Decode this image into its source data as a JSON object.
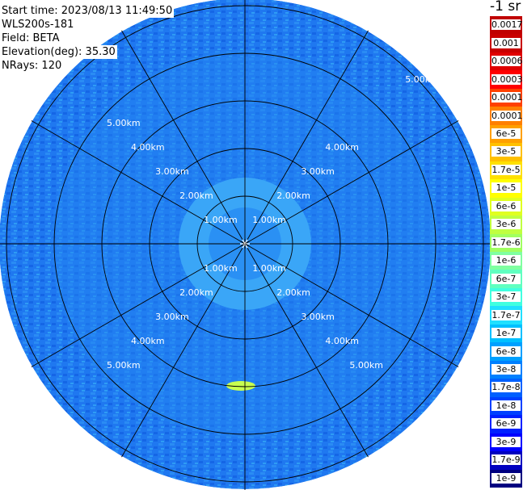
{
  "header": {
    "start_time": "Start time: 2023/08/13 11:49:50",
    "instrument": "WLS200s-181",
    "field": "Field: BETA",
    "elevation": "Elevation(deg): 35.30",
    "nrays": "NRays: 120"
  },
  "colorbar": {
    "unit_title": "-1 sr",
    "labels": [
      "0.0017",
      "0.001",
      "0.0006",
      "0.0003",
      "0.00017",
      "0.0001",
      "6e-5",
      "3e-5",
      "1.7e-5",
      "1e-5",
      "6e-6",
      "3e-6",
      "1.7e-6",
      "1e-6",
      "6e-7",
      "3e-7",
      "1.7e-7",
      "1e-7",
      "6e-8",
      "3e-8",
      "1.7e-8",
      "1e-8",
      "6e-9",
      "3e-9",
      "1.7e-9",
      "1e-9"
    ],
    "colors": [
      "#c00000",
      "#c80000",
      "#e00000",
      "#ff0000",
      "#ff4000",
      "#ff8000",
      "#ffa000",
      "#ffc000",
      "#ffe000",
      "#ffff00",
      "#e0ff20",
      "#c0ff40",
      "#a0ff60",
      "#80ffa0",
      "#60ffc0",
      "#40ffe0",
      "#20e0ff",
      "#00c0ff",
      "#00a0ff",
      "#0080ff",
      "#0060ff",
      "#0040ff",
      "#0020ff",
      "#0000ff",
      "#0000c0",
      "#000080"
    ]
  },
  "chart_data": {
    "type": "heatmap",
    "projection": "polar-ppi",
    "field": "BETA",
    "nrays": 120,
    "range_rings_km": [
      1,
      2,
      3,
      4,
      5
    ],
    "ring_labels": [
      "1.00km",
      "2.00km",
      "3.00km",
      "4.00km",
      "5.00km"
    ],
    "max_range_km": 5.3,
    "spoke_angles_deg": [
      0,
      30,
      60,
      90,
      120,
      150,
      180,
      210,
      240,
      270,
      300,
      330
    ],
    "grid": true,
    "background_value_approx": "1e-8",
    "color_scale": "log",
    "colors": {
      "dominant": "#1f78f0",
      "mid": "#2e9cf5",
      "near_field": "#3aa6f7",
      "speckle_dark": "#1050e0",
      "hotspot": "#f0ff40"
    }
  }
}
